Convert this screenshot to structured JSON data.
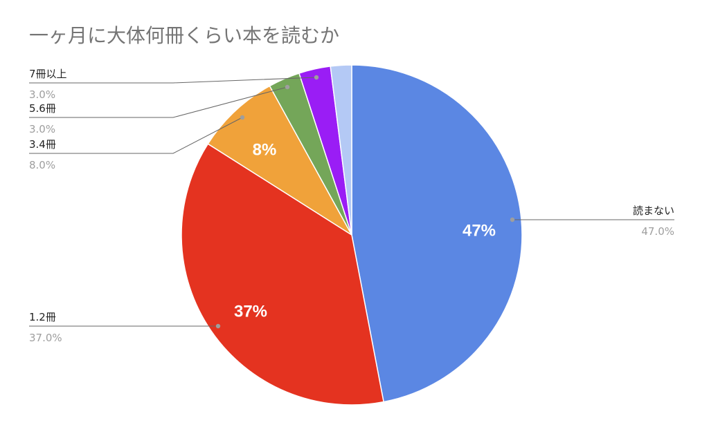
{
  "chart_data": {
    "type": "pie",
    "title": "一ヶ月に大体何冊くらい本を読むか",
    "slices": [
      {
        "label": "読まない",
        "value": 47.0,
        "value_text": "47.0%",
        "inner_label": "47%",
        "color": "#5b87e3"
      },
      {
        "label": "1.2冊",
        "value": 37.0,
        "value_text": "37.0%",
        "inner_label": "37%",
        "color": "#e43320"
      },
      {
        "label": "3.4冊",
        "value": 8.0,
        "value_text": "8.0%",
        "inner_label": "8%",
        "color": "#f0a23a"
      },
      {
        "label": "5.6冊",
        "value": 3.0,
        "value_text": "3.0%",
        "inner_label": "",
        "color": "#74a659"
      },
      {
        "label": "7冊以上",
        "value": 3.0,
        "value_text": "3.0%",
        "inner_label": "",
        "color": "#9a1df5"
      },
      {
        "label": "",
        "value": 2.0,
        "value_text": "",
        "inner_label": "",
        "color": "#b4c9f5"
      }
    ],
    "legend": "callouts"
  }
}
